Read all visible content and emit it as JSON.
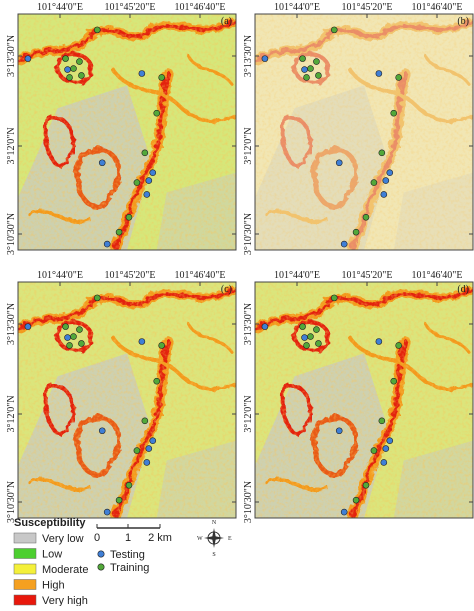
{
  "panels": [
    {
      "label": "(a)"
    },
    {
      "label": "(b)"
    },
    {
      "label": "(c)"
    },
    {
      "label": "(d)"
    }
  ],
  "top_axis_labels": [
    "101°44'0\"E",
    "101°45'20\"E",
    "101°46'40\"E"
  ],
  "left_axis_labels": [
    "3°13'30\"N",
    "3°12'0\"N",
    "3°10'30\"N"
  ],
  "legend": {
    "title": "Susceptibility",
    "classes": [
      {
        "label": "Very low",
        "color": "#c8c8c8"
      },
      {
        "label": "Low",
        "color": "#4ccf2f"
      },
      {
        "label": "Moderate",
        "color": "#f4f03a"
      },
      {
        "label": "High",
        "color": "#f5a020"
      },
      {
        "label": "Very high",
        "color": "#e8180c"
      }
    ]
  },
  "points": [
    {
      "label": "Testing",
      "color": "#3f7fd6"
    },
    {
      "label": "Training",
      "color": "#52a83a"
    }
  ],
  "scale_bar": {
    "labels": [
      "0",
      "1",
      "2 km"
    ]
  },
  "north_arrow": {
    "labels": [
      "N",
      "E",
      "S",
      "W"
    ]
  }
}
